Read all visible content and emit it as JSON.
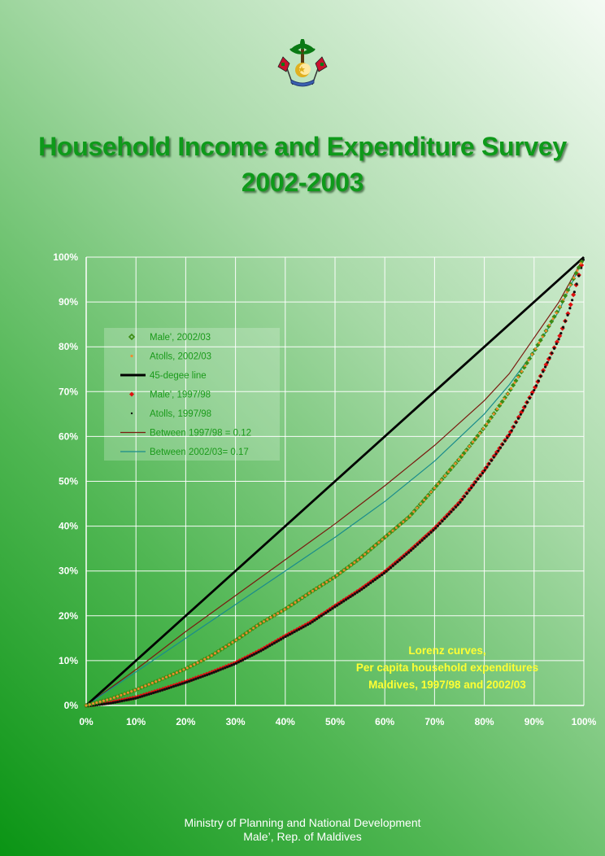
{
  "header": {
    "title_line1": "Household Income and Expenditure Survey",
    "title_line2": "2002-2003"
  },
  "footer": {
    "line1": "Ministry of Planning and National Development",
    "line2": "Male’, Rep. of Maldives"
  },
  "colors": {
    "title": "#0e9a1a",
    "legend_text": "#1a9a1a",
    "annotation": "#ffff33",
    "male_2002": "#3c8c14",
    "atolls_2002": "#f08a30",
    "line_45": "#000000",
    "male_1997": "#e01010",
    "atolls_1997": "#101010",
    "between_1997": "#7a1a10",
    "between_2002": "#1a8c8c"
  },
  "chart_data": {
    "type": "line",
    "title": "",
    "xlabel": "",
    "ylabel": "",
    "xlim": [
      0,
      100
    ],
    "ylim": [
      0,
      100
    ],
    "x_ticks": [
      "0%",
      "10%",
      "20%",
      "30%",
      "40%",
      "50%",
      "60%",
      "70%",
      "80%",
      "90%",
      "100%"
    ],
    "y_ticks": [
      "0%",
      "10%",
      "20%",
      "30%",
      "40%",
      "50%",
      "60%",
      "70%",
      "80%",
      "90%",
      "100%"
    ],
    "grid": true,
    "legend_position": "upper-left",
    "annotation": [
      "Lorenz curves,",
      "Per capita household expenditures",
      "Maldives, 1997/98 and 2002/03"
    ],
    "series": [
      {
        "name": "Male', 2002/03",
        "kind": "markers",
        "x": [
          0,
          5,
          10,
          15,
          20,
          25,
          30,
          35,
          40,
          45,
          50,
          55,
          60,
          65,
          70,
          75,
          80,
          85,
          90,
          95,
          100
        ],
        "y": [
          0,
          1.5,
          3.5,
          5.8,
          8.2,
          11,
          14.5,
          18.3,
          21.5,
          25.2,
          28.7,
          32.8,
          37.5,
          42.2,
          48.5,
          55,
          62,
          70,
          79,
          88.5,
          100
        ]
      },
      {
        "name": "Atolls, 2002/03",
        "kind": "dots",
        "x": [
          0,
          5,
          10,
          15,
          20,
          25,
          30,
          35,
          40,
          45,
          50,
          55,
          60,
          65,
          70,
          75,
          80,
          85,
          90,
          95,
          100
        ],
        "y": [
          0,
          1.5,
          3.5,
          5.8,
          8.2,
          11,
          14.5,
          18.3,
          21.5,
          25.2,
          28.7,
          32.8,
          37.5,
          42.2,
          48.5,
          55,
          62,
          70,
          79,
          88.5,
          100
        ]
      },
      {
        "name": "45-degee line",
        "kind": "line",
        "x": [
          0,
          100
        ],
        "y": [
          0,
          100
        ]
      },
      {
        "name": "Male', 1997/98",
        "kind": "markers",
        "x": [
          0,
          5,
          10,
          15,
          20,
          25,
          30,
          35,
          40,
          45,
          50,
          55,
          60,
          65,
          70,
          75,
          80,
          85,
          90,
          95,
          97,
          100
        ],
        "y": [
          0,
          0.7,
          1.8,
          3.5,
          5.3,
          7.3,
          9.5,
          12.3,
          15.5,
          18.5,
          22.2,
          25.8,
          29.8,
          34.5,
          39.5,
          45.3,
          52.5,
          60.5,
          70.5,
          82,
          88,
          100
        ]
      },
      {
        "name": "Atolls, 1997/98",
        "kind": "dots",
        "x": [
          0,
          5,
          10,
          15,
          20,
          25,
          30,
          35,
          40,
          45,
          50,
          55,
          60,
          65,
          70,
          75,
          80,
          85,
          90,
          95,
          97,
          100
        ],
        "y": [
          0,
          0.7,
          1.8,
          3.5,
          5.3,
          7.3,
          9.5,
          12.3,
          15.5,
          18.5,
          22.2,
          25.8,
          29.8,
          34.5,
          39.5,
          45.3,
          52.5,
          60.5,
          70.5,
          82,
          88,
          100
        ]
      },
      {
        "name": "Between 1997/98 = 0.12",
        "kind": "line",
        "x": [
          0,
          10,
          20,
          30,
          40,
          50,
          60,
          70,
          80,
          85,
          90,
          95,
          100
        ],
        "y": [
          0,
          8,
          16.5,
          24.5,
          32.5,
          40.5,
          49,
          58,
          68,
          74,
          82,
          90,
          100
        ]
      },
      {
        "name": "Between 2002/03= 0.17",
        "kind": "line",
        "x": [
          0,
          10,
          20,
          30,
          40,
          50,
          60,
          70,
          80,
          85,
          90,
          95,
          100
        ],
        "y": [
          0,
          7.5,
          15,
          22.5,
          30,
          37.5,
          45.5,
          54.5,
          65,
          71.5,
          79,
          88,
          100
        ]
      }
    ]
  }
}
